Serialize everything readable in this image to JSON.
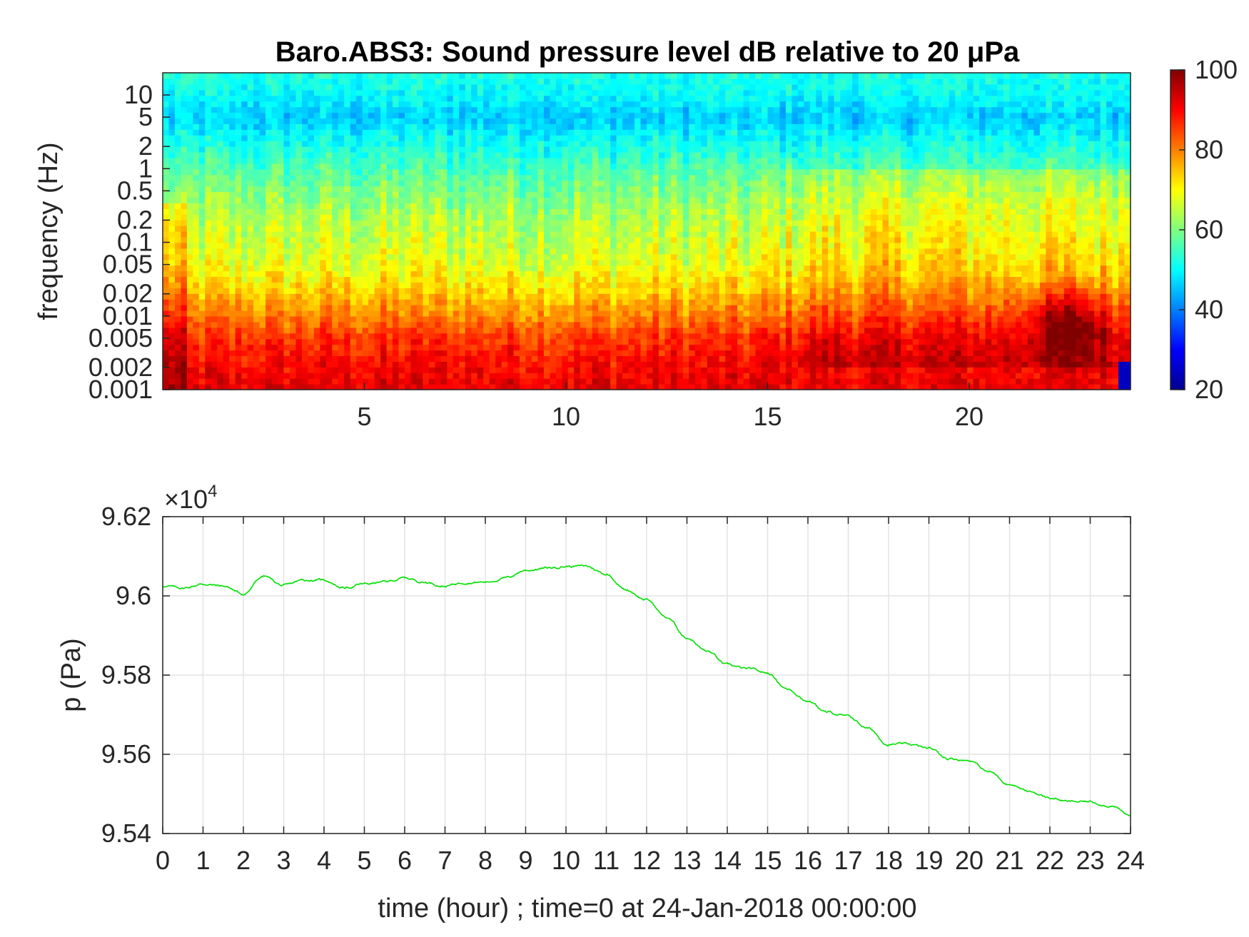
{
  "chart_data": [
    {
      "type": "heatmap",
      "title": "Baro.ABS3: Sound pressure level dB relative to 20 μPa",
      "xlabel": "",
      "ylabel": "frequency (Hz)",
      "x_ticks": [
        5,
        10,
        15,
        20
      ],
      "x_range": [
        0,
        24
      ],
      "y_scale": "log",
      "y_range": [
        0.001,
        20
      ],
      "y_ticks": [
        {
          "value": 10,
          "label": "10"
        },
        {
          "value": 5,
          "label": "5"
        },
        {
          "value": 2,
          "label": "2"
        },
        {
          "value": 1,
          "label": "1"
        },
        {
          "value": 0.5,
          "label": "0.5"
        },
        {
          "value": 0.2,
          "label": "0.2"
        },
        {
          "value": 0.1,
          "label": "0.1"
        },
        {
          "value": 0.05,
          "label": "0.05"
        },
        {
          "value": 0.02,
          "label": "0.02"
        },
        {
          "value": 0.01,
          "label": "0.01"
        },
        {
          "value": 0.005,
          "label": "0.005"
        },
        {
          "value": 0.002,
          "label": "0.002"
        },
        {
          "value": 0.001,
          "label": "0.001"
        }
      ],
      "colorbar": {
        "colormap": "jet",
        "range": [
          20,
          100
        ],
        "ticks": [
          20,
          40,
          60,
          80,
          100
        ]
      },
      "level_profile": {
        "description_freq_hz": [
          0.001,
          0.002,
          0.005,
          0.01,
          0.02,
          0.05,
          0.1,
          0.2,
          0.5,
          1,
          2,
          5,
          10,
          20
        ],
        "typical_db": [
          92,
          90,
          86,
          80,
          74,
          68,
          66,
          64,
          60,
          56,
          52,
          46,
          50,
          52
        ]
      },
      "hotspot": {
        "time_hour": 22.5,
        "freq_hz": 0.008,
        "db": 98
      }
    },
    {
      "type": "line",
      "title": "",
      "xlabel": "time (hour) ; time=0 at 24-Jan-2018 00:00:00",
      "ylabel": "p (Pa)",
      "y_multiplier": "×10",
      "y_multiplier_exp": "4",
      "xlim": [
        0,
        24
      ],
      "ylim": [
        9.54,
        9.62
      ],
      "x_ticks": [
        0,
        1,
        2,
        3,
        4,
        5,
        6,
        7,
        8,
        9,
        10,
        11,
        12,
        13,
        14,
        15,
        16,
        17,
        18,
        19,
        20,
        21,
        22,
        23,
        24
      ],
      "y_ticks": [
        "9.54",
        "9.56",
        "9.58",
        "9.6",
        "9.62"
      ],
      "grid": true,
      "series": [
        {
          "color": "#00e000",
          "x": [
            0,
            0.5,
            1,
            1.5,
            2,
            2.5,
            3,
            3.5,
            4,
            4.5,
            5,
            5.5,
            6,
            6.5,
            7,
            7.5,
            8,
            8.5,
            9,
            9.5,
            10,
            10.5,
            11,
            11.5,
            12,
            12.5,
            13,
            13.5,
            14,
            14.5,
            15,
            15.5,
            16,
            16.5,
            17,
            17.5,
            18,
            18.5,
            19,
            19.5,
            20,
            20.5,
            21,
            21.5,
            22,
            22.5,
            23,
            23.5,
            24
          ],
          "y": [
            9.6025,
            9.602,
            9.603,
            9.6025,
            9.6005,
            9.605,
            9.6025,
            9.604,
            9.604,
            9.602,
            9.603,
            9.6035,
            9.6045,
            9.6035,
            9.6025,
            9.6035,
            9.6035,
            9.6045,
            9.6065,
            9.607,
            9.6075,
            9.6075,
            9.6055,
            9.6015,
            9.599,
            9.5945,
            9.5895,
            9.586,
            9.5825,
            9.5815,
            9.5805,
            9.5765,
            9.5735,
            9.5705,
            9.5695,
            9.5665,
            9.5625,
            9.5625,
            9.5615,
            9.559,
            9.5585,
            9.5555,
            9.5525,
            9.5505,
            9.549,
            9.548,
            9.548,
            9.547,
            9.5445
          ]
        }
      ]
    }
  ]
}
